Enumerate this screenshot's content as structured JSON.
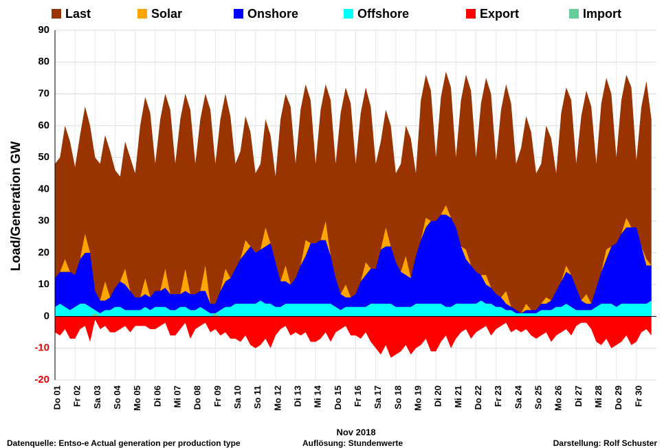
{
  "chart_data": {
    "type": "area",
    "ylabel": "Load/Generation  GW",
    "xlabel": "Nov 2018",
    "footer": {
      "source": "Datenquelle: Entso-e  Actual generation per production type",
      "resolution": "Auflösung: Stundenwerte",
      "author": "Darstellung:  Rolf Schuster"
    },
    "xlim": [
      1,
      31
    ],
    "ylim": [
      -20,
      90
    ],
    "yticks": [
      -20,
      -10,
      0,
      10,
      20,
      30,
      40,
      50,
      60,
      70,
      80,
      90
    ],
    "grid": true,
    "xticks": [
      {
        "value": 1,
        "label": "Do 01"
      },
      {
        "value": 2,
        "label": "Fr 02"
      },
      {
        "value": 3,
        "label": "Sa 03"
      },
      {
        "value": 4,
        "label": "So 04"
      },
      {
        "value": 5,
        "label": "Mo 05"
      },
      {
        "value": 6,
        "label": "Di 06"
      },
      {
        "value": 7,
        "label": "Mi 07"
      },
      {
        "value": 8,
        "label": "Do 08"
      },
      {
        "value": 9,
        "label": "Fr 09"
      },
      {
        "value": 10,
        "label": "Sa 10"
      },
      {
        "value": 11,
        "label": "So 11"
      },
      {
        "value": 12,
        "label": "Mo 12"
      },
      {
        "value": 13,
        "label": "Di 13"
      },
      {
        "value": 14,
        "label": "Mi 14"
      },
      {
        "value": 15,
        "label": "Do 15"
      },
      {
        "value": 16,
        "label": "Fr 16"
      },
      {
        "value": 17,
        "label": "Sa 17"
      },
      {
        "value": 18,
        "label": "So 18"
      },
      {
        "value": 19,
        "label": "Mo 19"
      },
      {
        "value": 20,
        "label": "Di 20"
      },
      {
        "value": 21,
        "label": "Mi 21"
      },
      {
        "value": 22,
        "label": "Do 22"
      },
      {
        "value": 23,
        "label": "Fr 23"
      },
      {
        "value": 24,
        "label": "Sa 24"
      },
      {
        "value": 25,
        "label": "So 25"
      },
      {
        "value": 26,
        "label": "Mo 26"
      },
      {
        "value": 27,
        "label": "Di 27"
      },
      {
        "value": 28,
        "label": "Mi 28"
      },
      {
        "value": 29,
        "label": "Do 29"
      },
      {
        "value": 30,
        "label": "Fr 30"
      }
    ],
    "x": [
      1,
      1.25,
      1.5,
      1.75,
      2,
      2.25,
      2.5,
      2.75,
      3,
      3.25,
      3.5,
      3.75,
      4,
      4.25,
      4.5,
      4.75,
      5,
      5.25,
      5.5,
      5.75,
      6,
      6.25,
      6.5,
      6.75,
      7,
      7.25,
      7.5,
      7.75,
      8,
      8.25,
      8.5,
      8.75,
      9,
      9.25,
      9.5,
      9.75,
      10,
      10.25,
      10.5,
      10.75,
      11,
      11.25,
      11.5,
      11.75,
      12,
      12.25,
      12.5,
      12.75,
      13,
      13.25,
      13.5,
      13.75,
      14,
      14.25,
      14.5,
      14.75,
      15,
      15.25,
      15.5,
      15.75,
      16,
      16.25,
      16.5,
      16.75,
      17,
      17.25,
      17.5,
      17.75,
      18,
      18.25,
      18.5,
      18.75,
      19,
      19.25,
      19.5,
      19.75,
      20,
      20.25,
      20.5,
      20.75,
      21,
      21.25,
      21.5,
      21.75,
      22,
      22.25,
      22.5,
      22.75,
      23,
      23.25,
      23.5,
      23.75,
      24,
      24.25,
      24.5,
      24.75,
      25,
      25.25,
      25.5,
      25.75,
      26,
      26.25,
      26.5,
      26.75,
      27,
      27.25,
      27.5,
      27.75,
      28,
      28.25,
      28.5,
      28.75,
      29,
      29.25,
      29.5,
      29.75,
      30,
      30.25,
      30.5,
      30.75
    ],
    "series": [
      {
        "name": "Last",
        "color": "#993300",
        "values": [
          48,
          50,
          60,
          55,
          47,
          57,
          66,
          60,
          50,
          48,
          57,
          52,
          46,
          44,
          55,
          50,
          45,
          60,
          69,
          64,
          48,
          62,
          70,
          65,
          48,
          62,
          70,
          65,
          48,
          62,
          70,
          65,
          48,
          62,
          70,
          63,
          48,
          52,
          63,
          58,
          45,
          48,
          62,
          57,
          44,
          62,
          70,
          66,
          48,
          65,
          73,
          68,
          48,
          65,
          73,
          68,
          48,
          64,
          72,
          67,
          48,
          64,
          72,
          66,
          48,
          55,
          65,
          60,
          45,
          48,
          60,
          56,
          45,
          68,
          76,
          71,
          50,
          69,
          77,
          72,
          50,
          68,
          76,
          71,
          50,
          67,
          75,
          70,
          49,
          65,
          73,
          67,
          48,
          53,
          63,
          58,
          45,
          48,
          60,
          56,
          45,
          64,
          72,
          68,
          48,
          63,
          71,
          66,
          48,
          67,
          75,
          70,
          50,
          68,
          76,
          72,
          49,
          66,
          74,
          62
        ]
      },
      {
        "name": "Solar",
        "color": "#FFA500",
        "values": [
          0,
          0,
          4,
          0,
          0,
          0,
          6,
          0,
          0,
          0,
          6,
          0,
          0,
          0,
          5,
          0,
          0,
          0,
          5,
          0,
          0,
          0,
          6,
          0,
          0,
          0,
          7,
          0,
          0,
          0,
          8,
          0,
          0,
          0,
          4,
          0,
          0,
          0,
          4,
          0,
          0,
          0,
          6,
          0,
          0,
          0,
          5,
          0,
          0,
          0,
          5,
          0,
          0,
          0,
          6,
          0,
          0,
          0,
          4,
          0,
          0,
          0,
          4,
          0,
          0,
          0,
          6,
          0,
          0,
          0,
          6,
          0,
          0,
          0,
          3,
          0,
          0,
          0,
          3,
          0,
          0,
          0,
          3,
          0,
          0,
          0,
          3,
          0,
          0,
          0,
          4,
          0,
          0,
          0,
          2,
          0,
          0,
          0,
          2,
          0,
          0,
          0,
          2,
          0,
          0,
          0,
          3,
          0,
          0,
          0,
          3,
          0,
          0,
          0,
          3,
          0,
          0,
          0,
          2,
          0
        ]
      },
      {
        "name": "Onshore",
        "color": "#0000FF",
        "values": [
          9,
          10,
          11,
          12,
          10,
          14,
          16,
          17,
          6,
          4,
          3,
          4,
          6,
          8,
          8,
          6,
          4,
          4,
          4,
          4,
          5,
          5,
          6,
          5,
          5,
          4,
          5,
          5,
          5,
          5,
          6,
          3,
          3,
          6,
          8,
          9,
          11,
          14,
          16,
          18,
          16,
          16,
          18,
          19,
          14,
          8,
          7,
          6,
          8,
          12,
          15,
          19,
          19,
          20,
          20,
          15,
          9,
          5,
          3,
          3,
          4,
          8,
          10,
          11,
          11,
          17,
          18,
          18,
          14,
          11,
          10,
          9,
          15,
          20,
          24,
          26,
          26,
          28,
          29,
          28,
          24,
          18,
          14,
          12,
          10,
          8,
          6,
          5,
          4,
          3,
          2,
          1,
          1,
          0,
          1,
          1,
          1,
          2,
          2,
          3,
          5,
          8,
          10,
          10,
          7,
          3,
          2,
          2,
          6,
          10,
          14,
          18,
          20,
          22,
          24,
          24,
          24,
          18,
          12,
          11
        ]
      },
      {
        "name": "Offshore",
        "color": "#00FFFF",
        "values": [
          3,
          4,
          3,
          2,
          3,
          4,
          4,
          3,
          2,
          1,
          2,
          2,
          3,
          3,
          2,
          2,
          2,
          2,
          3,
          2,
          3,
          3,
          3,
          2,
          2,
          3,
          3,
          2,
          2,
          3,
          2,
          1,
          1,
          2,
          3,
          3,
          4,
          4,
          4,
          4,
          4,
          5,
          4,
          4,
          3,
          3,
          4,
          4,
          4,
          4,
          4,
          4,
          4,
          4,
          4,
          4,
          3,
          2,
          3,
          3,
          3,
          3,
          3,
          4,
          4,
          4,
          4,
          4,
          3,
          3,
          3,
          3,
          4,
          4,
          4,
          4,
          4,
          4,
          3,
          3,
          4,
          4,
          4,
          4,
          4,
          5,
          4,
          4,
          3,
          3,
          2,
          2,
          1,
          1,
          1,
          1,
          1,
          2,
          2,
          2,
          3,
          3,
          4,
          3,
          2,
          2,
          2,
          2,
          3,
          4,
          4,
          4,
          3,
          4,
          4,
          4,
          4,
          4,
          4,
          5
        ]
      },
      {
        "name": "Export",
        "color": "#FF0000",
        "values": [
          -5,
          -6,
          -4,
          -7,
          -7,
          -4,
          -3,
          -8,
          -1,
          -4,
          -3,
          -5,
          -5,
          -4,
          -3,
          -5,
          -3,
          -3,
          -3,
          -4,
          -4,
          -3,
          -2,
          -6,
          -6,
          -4,
          -2,
          -7,
          -4,
          -3,
          -2,
          -5,
          -4,
          -6,
          -5,
          -7,
          -7,
          -8,
          -6,
          -9,
          -10,
          -9,
          -7,
          -10,
          -6,
          -4,
          -3,
          -6,
          -5,
          -6,
          -5,
          -8,
          -8,
          -7,
          -5,
          -8,
          -5,
          -4,
          -3,
          -6,
          -6,
          -7,
          -5,
          -8,
          -10,
          -12,
          -9,
          -13,
          -12,
          -11,
          -9,
          -12,
          -10,
          -9,
          -7,
          -11,
          -11,
          -8,
          -6,
          -10,
          -7,
          -5,
          -4,
          -7,
          -5,
          -4,
          -3,
          -6,
          -4,
          -3,
          -2,
          -5,
          -4,
          -5,
          -4,
          -6,
          -7,
          -6,
          -5,
          -8,
          -6,
          -5,
          -4,
          -6,
          -3,
          -2,
          -2,
          -4,
          -8,
          -9,
          -7,
          -10,
          -9,
          -8,
          -6,
          -9,
          -8,
          -5,
          -4,
          -6
        ]
      },
      {
        "name": "Import",
        "color": "#66CC99",
        "values": [
          0,
          0,
          0,
          0,
          0,
          0,
          0,
          0,
          1,
          0,
          0,
          0,
          0,
          0,
          0,
          0,
          0,
          0,
          0,
          0,
          0,
          0,
          0,
          0,
          0,
          0,
          0,
          0,
          0,
          0,
          0,
          0,
          1,
          0,
          0,
          0,
          0,
          0,
          0,
          0,
          0,
          0,
          0,
          0,
          0,
          0,
          0,
          0,
          0,
          0,
          0,
          0,
          0,
          0,
          0,
          0,
          0,
          0,
          0,
          0,
          0,
          0,
          0,
          0,
          0,
          0,
          0,
          0,
          0,
          0,
          0,
          0,
          0,
          0,
          0,
          0,
          0,
          0,
          0,
          0,
          0,
          0,
          0,
          0,
          0,
          0,
          0,
          0,
          0,
          0,
          0,
          0,
          0,
          0,
          0,
          0,
          0,
          0,
          0,
          0,
          0,
          0,
          0,
          0,
          0,
          0,
          0,
          0,
          0,
          0,
          0,
          0,
          0,
          0,
          0,
          0,
          0,
          0,
          0,
          0
        ]
      }
    ]
  }
}
